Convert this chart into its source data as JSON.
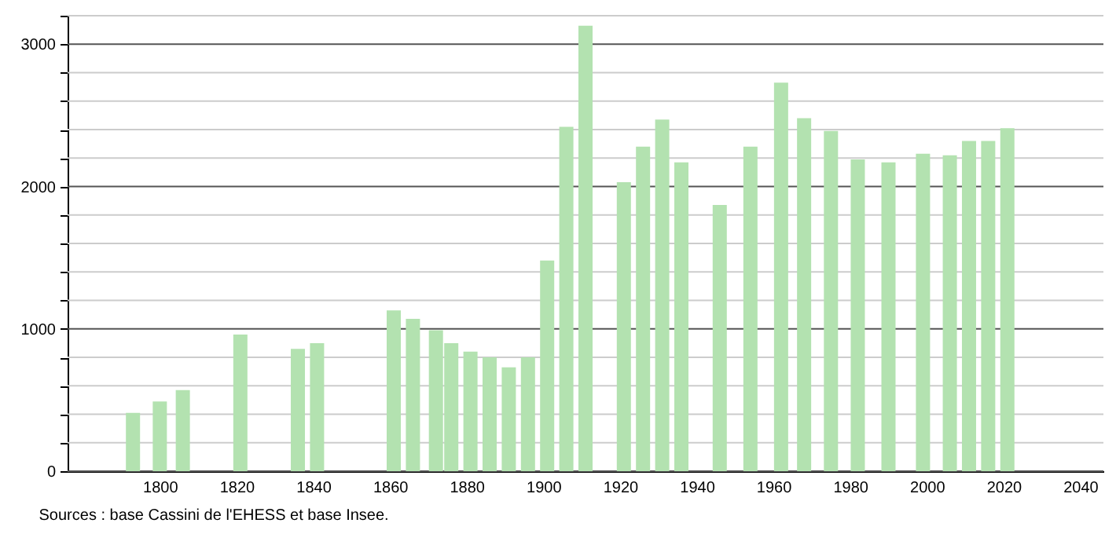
{
  "chart_data": {
    "type": "bar",
    "x": [
      1793,
      1800,
      1806,
      1821,
      1836,
      1841,
      1861,
      1866,
      1872,
      1876,
      1881,
      1886,
      1891,
      1896,
      1901,
      1906,
      1911,
      1921,
      1926,
      1931,
      1936,
      1946,
      1954,
      1962,
      1968,
      1975,
      1982,
      1990,
      1999,
      2006,
      2011,
      2016,
      2021
    ],
    "values": [
      410,
      490,
      570,
      960,
      860,
      900,
      1130,
      1070,
      990,
      900,
      840,
      800,
      730,
      800,
      1480,
      2420,
      3130,
      2030,
      2280,
      2470,
      2170,
      1870,
      2280,
      2730,
      2480,
      2390,
      2190,
      2170,
      2230,
      2220,
      2320,
      2320,
      2410
    ],
    "color": "#b3e2b0",
    "xlim": [
      1778,
      2044
    ],
    "xticks": [
      1800,
      1820,
      1840,
      1860,
      1880,
      1900,
      1920,
      1940,
      1960,
      1980,
      2000,
      2020,
      2040
    ],
    "ylim": [
      0,
      3200
    ],
    "yticks": [
      0,
      {
        "value": 200,
        "label": null
      },
      {
        "value": 400,
        "label": null
      },
      {
        "value": 600,
        "label": null
      },
      {
        "value": 800,
        "label": null
      },
      1000,
      {
        "value": 1200,
        "label": null
      },
      {
        "value": 1400,
        "label": null
      },
      {
        "value": 1600,
        "label": null
      },
      {
        "value": 1800,
        "label": null
      },
      2000,
      {
        "value": 2200,
        "label": null
      },
      {
        "value": 2400,
        "label": null
      },
      {
        "value": 2600,
        "label": null
      },
      {
        "value": 2800,
        "label": null
      },
      3000,
      {
        "value": 3200,
        "label": null
      }
    ],
    "grid": "y",
    "annotations": [
      "Sources : base Cassini de l'EHESS et base Insee."
    ]
  }
}
